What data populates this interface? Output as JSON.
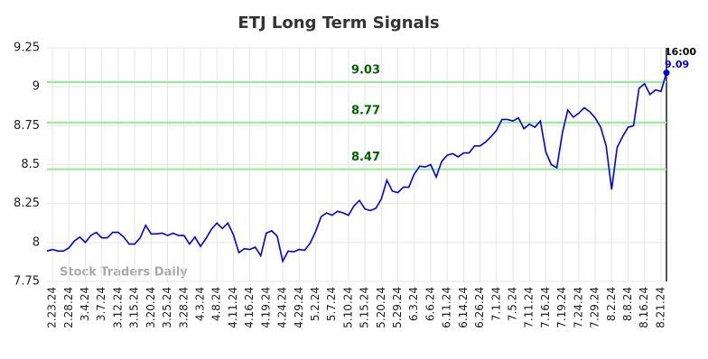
{
  "chart_data": {
    "type": "line",
    "title": "ETJ Long Term Signals",
    "watermark": "Stock Traders Daily",
    "time_label": "16:00",
    "color": "#0000ee",
    "hline_color": "#90ee90",
    "hline_label_color": "#006400",
    "grid": true,
    "ylim": [
      7.75,
      9.25
    ],
    "yticks": [
      7.75,
      8,
      8.25,
      8.5,
      8.75,
      9,
      9.25
    ],
    "hlines": [
      9.03,
      8.77,
      8.47
    ],
    "categories": [
      null,
      "2.23.24",
      null,
      null,
      "2.28.24",
      null,
      null,
      "3.4.24",
      null,
      null,
      "3.7.24",
      null,
      null,
      "3.12.24",
      null,
      null,
      "3.15.24",
      null,
      null,
      "3.20.24",
      null,
      null,
      "3.25.24",
      null,
      null,
      "3.28.24",
      null,
      null,
      "4.3.24",
      null,
      null,
      "4.8.24",
      null,
      null,
      "4.11.24",
      null,
      null,
      "4.16.24",
      null,
      null,
      "4.19.24",
      null,
      null,
      "4.24.24",
      null,
      null,
      "4.29.24",
      null,
      null,
      "5.2.24",
      null,
      null,
      "5.7.24",
      null,
      null,
      "5.10.24",
      null,
      null,
      "5.15.24",
      null,
      null,
      "5.20.24",
      null,
      null,
      "5.29.24",
      null,
      null,
      "6.3.24",
      null,
      null,
      "6.6.24",
      null,
      null,
      "6.11.24",
      null,
      null,
      "6.14.24",
      null,
      null,
      "6.26.24",
      null,
      null,
      "7.1.24",
      null,
      null,
      "7.5.24",
      null,
      null,
      "7.11.24",
      null,
      null,
      "7.16.24",
      null,
      null,
      "7.19.24",
      null,
      null,
      "7.24.24",
      null,
      null,
      "7.29.24",
      null,
      null,
      "8.2.24",
      null,
      null,
      "8.8.24",
      null,
      null,
      "8.16.24",
      null,
      null,
      "8.21.24",
      null
    ],
    "values": [
      7.945,
      7.955,
      7.945,
      7.945,
      7.965,
      8.01,
      8.035,
      8.0,
      8.045,
      8.065,
      8.03,
      8.03,
      8.065,
      8.065,
      8.035,
      7.99,
      7.99,
      8.03,
      8.11,
      8.055,
      8.055,
      8.06,
      8.045,
      8.06,
      8.045,
      8.045,
      7.99,
      8.035,
      7.975,
      8.025,
      8.085,
      8.125,
      8.09,
      8.125,
      8.05,
      7.935,
      7.96,
      7.955,
      7.97,
      7.915,
      8.06,
      8.075,
      8.04,
      7.88,
      7.945,
      7.94,
      7.955,
      7.95,
      7.995,
      8.07,
      8.165,
      8.19,
      8.175,
      8.2,
      8.19,
      8.175,
      8.235,
      8.27,
      8.215,
      8.205,
      8.22,
      8.28,
      8.4,
      8.33,
      8.32,
      8.355,
      8.355,
      8.44,
      8.49,
      8.485,
      8.5,
      8.42,
      8.52,
      8.56,
      8.57,
      8.55,
      8.575,
      8.575,
      8.62,
      8.62,
      8.645,
      8.68,
      8.72,
      8.79,
      8.79,
      8.78,
      8.8,
      8.73,
      8.76,
      8.74,
      8.78,
      8.58,
      8.5,
      8.48,
      8.7,
      8.85,
      8.805,
      8.83,
      8.865,
      8.84,
      8.8,
      8.74,
      8.62,
      8.34,
      8.61,
      8.68,
      8.74,
      8.75,
      8.99,
      9.02,
      8.95,
      8.98,
      8.97,
      9.09
    ]
  }
}
